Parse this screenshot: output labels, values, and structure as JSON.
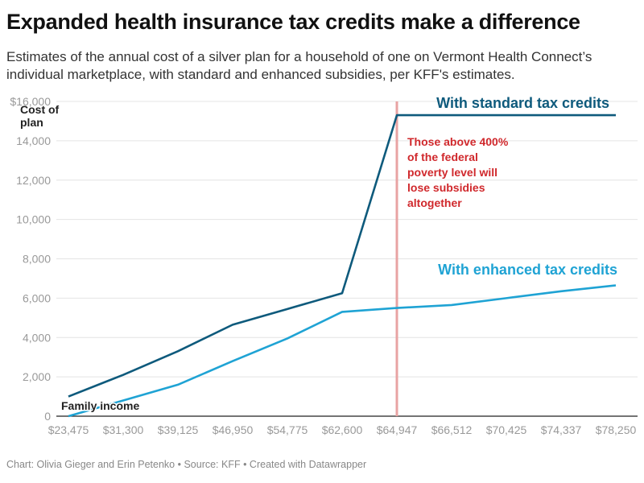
{
  "header": {
    "title": "Expanded health insurance tax credits make a difference",
    "subtitle": "Estimates of the annual cost of a silver plan for a household of one on Vermont Health Connect’s individual marketplace, with standard and enhanced subsidies, per KFF's estimates."
  },
  "footer": {
    "text": "Chart: Olivia Gieger and Erin Petenko • Source: KFF • Created with Datawrapper"
  },
  "chart_data": {
    "type": "line",
    "xlabel": "Family income",
    "ylabel": "Cost of plan",
    "categories": [
      "$23,475",
      "$31,300",
      "$39,125",
      "$46,950",
      "$54,775",
      "$62,600",
      "$64,947",
      "$66,512",
      "$70,425",
      "$74,337",
      "$78,250"
    ],
    "ylim": [
      0,
      16000
    ],
    "yticks": [
      0,
      2000,
      4000,
      6000,
      8000,
      10000,
      12000,
      14000,
      16000
    ],
    "ytick_labels": [
      "0",
      "2,000",
      "4,000",
      "6,000",
      "8,000",
      "10,000",
      "12,000",
      "14,000",
      "$16,000"
    ],
    "grid": true,
    "series": [
      {
        "name": "With standard tax credits",
        "color": "#0e5a7c",
        "values": [
          1000,
          2100,
          3300,
          4650,
          5450,
          6250,
          15300,
          15300,
          15300,
          15300,
          15300
        ]
      },
      {
        "name": "With enhanced tax credits",
        "color": "#1fa3d4",
        "values": [
          0,
          800,
          1600,
          2800,
          3950,
          5300,
          5500,
          5650,
          6000,
          6350,
          6650
        ]
      }
    ],
    "annotations": [
      {
        "text": "Those above 400% of the federal poverty level will lose subsidies altogether",
        "at": "$64,947",
        "color": "#d0282c",
        "line_color": "#e8a3a3"
      }
    ]
  }
}
